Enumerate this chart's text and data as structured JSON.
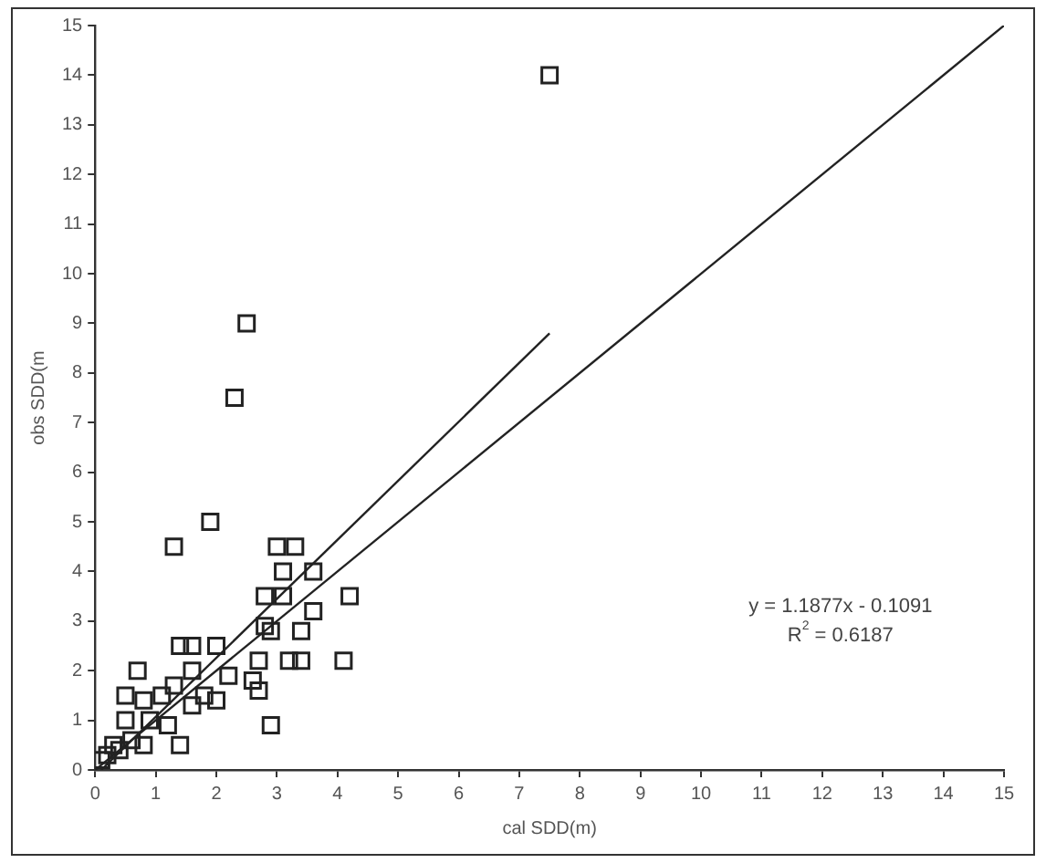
{
  "chart_data": {
    "type": "scatter",
    "xlabel": "cal SDD(m)",
    "ylabel": "obs SDD(m",
    "xlim": [
      0,
      15
    ],
    "ylim": [
      0,
      15
    ],
    "xticks": [
      0,
      1,
      2,
      3,
      4,
      5,
      6,
      7,
      8,
      9,
      10,
      11,
      12,
      13,
      14,
      15
    ],
    "yticks": [
      0,
      1,
      2,
      3,
      4,
      5,
      6,
      7,
      8,
      9,
      10,
      11,
      12,
      13,
      14,
      15
    ],
    "grid": false,
    "legend": false,
    "annotations": [
      "y = 1.1877x - 0.1091",
      "R$^{2}$ = 0.6187"
    ],
    "series": [
      {
        "marker": "square",
        "color": "#222222",
        "x": [
          7.5,
          2.5,
          2.3,
          1.9,
          1.3,
          3.0,
          3.3,
          3.1,
          3.6,
          2.8,
          3.1,
          4.2,
          3.6,
          2.8,
          3.4,
          2.9,
          1.4,
          1.6,
          2.0,
          2.7,
          3.2,
          3.4,
          4.1,
          0.7,
          1.6,
          2.2,
          2.6,
          0.5,
          1.1,
          1.3,
          1.8,
          0.8,
          1.6,
          2.0,
          2.7,
          1.2,
          2.9,
          0.5,
          0.9,
          1.4,
          0.8,
          0.3,
          0.2,
          0.1,
          0.4,
          0.6
        ],
        "values": [
          14,
          9,
          7.5,
          5,
          4.5,
          4.5,
          4.5,
          4,
          4,
          3.5,
          3.5,
          3.5,
          3.2,
          2.9,
          2.8,
          2.8,
          2.5,
          2.5,
          2.5,
          2.2,
          2.2,
          2.2,
          2.2,
          2,
          2,
          1.9,
          1.8,
          1.5,
          1.5,
          1.7,
          1.5,
          1.4,
          1.3,
          1.4,
          1.6,
          0.9,
          0.9,
          1,
          1,
          0.5,
          0.5,
          0.5,
          0.3,
          0.2,
          0.4,
          0.6
        ]
      },
      {
        "type": "line",
        "marker": "none",
        "color": "#222222",
        "x": [
          0.1,
          7.5
        ],
        "values": [
          0,
          8.8
        ]
      },
      {
        "type": "line",
        "marker": "none",
        "color": "#222222",
        "x": [
          0,
          15
        ],
        "values": [
          0,
          15
        ]
      }
    ]
  }
}
